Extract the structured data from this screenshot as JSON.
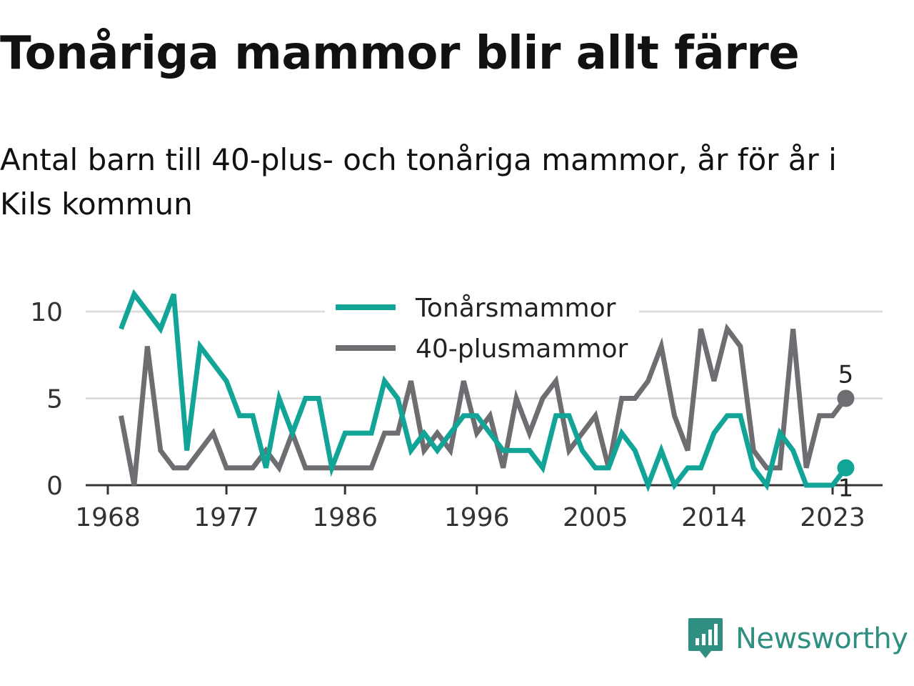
{
  "page": {
    "title": "Tonåriga mammor blir allt färre",
    "subtitle": "Antal barn till 40-plus- och tonåriga mammor, år för år i Kils kommun",
    "brand": "Newsworthy"
  },
  "chart_data": {
    "type": "line",
    "title": "Tonåriga mammor blir allt färre",
    "subtitle": "Antal barn till 40-plus- och tonåriga mammor, år för år i Kils kommun",
    "xlabel": "",
    "ylabel": "",
    "x": [
      1969,
      1970,
      1971,
      1972,
      1973,
      1974,
      1975,
      1976,
      1977,
      1978,
      1979,
      1980,
      1981,
      1982,
      1983,
      1984,
      1985,
      1986,
      1987,
      1988,
      1989,
      1990,
      1991,
      1992,
      1993,
      1994,
      1995,
      1996,
      1997,
      1998,
      1999,
      2000,
      2001,
      2002,
      2003,
      2004,
      2005,
      2006,
      2007,
      2008,
      2009,
      2010,
      2011,
      2012,
      2013,
      2014,
      2015,
      2016,
      2017,
      2018,
      2019,
      2020,
      2021,
      2022,
      2023,
      2024
    ],
    "x_ticks": [
      "1968",
      "1977",
      "1986",
      "1996",
      "2005",
      "2014",
      "2023"
    ],
    "x_tick_values": [
      1968,
      1977,
      1986,
      1996,
      2005,
      2014,
      2023
    ],
    "xlim": [
      1968,
      2024
    ],
    "y_ticks": [
      "0",
      "5",
      "10"
    ],
    "y_tick_values": [
      0,
      5,
      10
    ],
    "ylim": [
      0,
      10
    ],
    "grid": "horizontal",
    "legend_position": "top-center",
    "series": [
      {
        "name": "Tonårsmammor",
        "color": "#12a597",
        "values": [
          9,
          11,
          10,
          9,
          11,
          2,
          8,
          7,
          6,
          4,
          4,
          1,
          5,
          3,
          5,
          5,
          1,
          3,
          3,
          3,
          6,
          5,
          2,
          3,
          2,
          3,
          4,
          4,
          3,
          2,
          2,
          2,
          1,
          4,
          4,
          2,
          1,
          1,
          3,
          2,
          0,
          2,
          0,
          1,
          1,
          3,
          4,
          4,
          1,
          0,
          3,
          2,
          0,
          0,
          0,
          1
        ],
        "end_label": "1"
      },
      {
        "name": "40-plusmammor",
        "color": "#6e6d71",
        "values": [
          4,
          0,
          8,
          2,
          1,
          1,
          2,
          3,
          1,
          1,
          1,
          2,
          1,
          3,
          1,
          1,
          1,
          1,
          1,
          1,
          3,
          3,
          6,
          2,
          3,
          2,
          6,
          3,
          4,
          1,
          5,
          3,
          5,
          6,
          2,
          3,
          4,
          1,
          5,
          5,
          6,
          8,
          4,
          2,
          9,
          6,
          9,
          8,
          2,
          1,
          1,
          9,
          1,
          4,
          4,
          5
        ],
        "end_label": "5"
      }
    ]
  }
}
